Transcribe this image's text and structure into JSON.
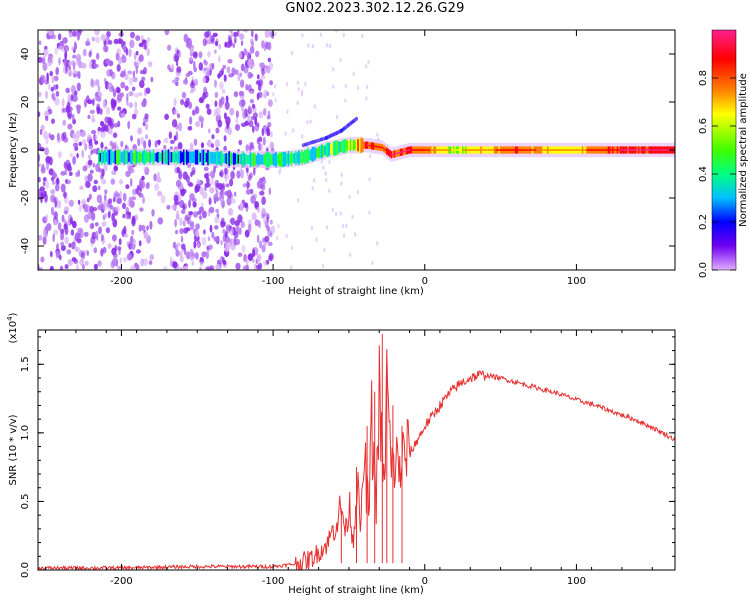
{
  "figure": {
    "title": "GN02.2023.302.12.26.G29"
  },
  "chart_data": [
    {
      "type": "heatmap",
      "xlabel": "Height of straight line (km)",
      "ylabel": "Frequency (Hz)",
      "xlim": [
        -255,
        165
      ],
      "ylim": [
        -50,
        50
      ],
      "xticks": [
        -200,
        -100,
        0,
        100
      ],
      "yticks": [
        -40,
        -20,
        0,
        20,
        40
      ],
      "colorbar": {
        "label": "Normalized spectral amplitude",
        "range": [
          0,
          1
        ],
        "ticks": [
          "0.0",
          "0.2",
          "0.4",
          "0.6",
          "0.8"
        ],
        "colormap": [
          "#e0b0ff",
          "#6000f0",
          "#0000ff",
          "#00c0ff",
          "#00ff80",
          "#40ff00",
          "#ffff00",
          "#ff8000",
          "#ff0000",
          "#ff2090"
        ]
      },
      "ridge": {
        "description_points": [
          {
            "x": -215,
            "y": -3,
            "amp": 0.35
          },
          {
            "x": -180,
            "y": -3,
            "amp": 0.4
          },
          {
            "x": -150,
            "y": -3,
            "amp": 0.3
          },
          {
            "x": -115,
            "y": -4,
            "amp": 0.4
          },
          {
            "x": -95,
            "y": -4,
            "amp": 0.5
          },
          {
            "x": -80,
            "y": -3,
            "amp": 0.45
          },
          {
            "x": -65,
            "y": 0,
            "amp": 0.5
          },
          {
            "x": -50,
            "y": 2,
            "amp": 0.55
          },
          {
            "x": -38,
            "y": 2,
            "amp": 0.85
          },
          {
            "x": -28,
            "y": 1,
            "amp": 0.8
          },
          {
            "x": -22,
            "y": -2,
            "amp": 0.85
          },
          {
            "x": -10,
            "y": 0,
            "amp": 0.85
          },
          {
            "x": 20,
            "y": 0,
            "amp": 0.6
          },
          {
            "x": 60,
            "y": 0,
            "amp": 0.8
          },
          {
            "x": 90,
            "y": 0,
            "amp": 0.65
          },
          {
            "x": 130,
            "y": 0,
            "amp": 0.85
          },
          {
            "x": 165,
            "y": 0,
            "amp": 0.9
          }
        ]
      },
      "upper_branch": [
        {
          "x": -80,
          "y": 2
        },
        {
          "x": -65,
          "y": 5
        },
        {
          "x": -55,
          "y": 8
        },
        {
          "x": -45,
          "y": 13
        }
      ],
      "noise_region_x": [
        -255,
        -100
      ]
    },
    {
      "type": "line",
      "xlabel": "Height of straight line (km)",
      "ylabel": "SNR (10 * v/v)",
      "y_multiplier": "(x10^4)",
      "xlim": [
        -255,
        165
      ],
      "ylim": [
        0,
        1.75
      ],
      "xticks": [
        -200,
        -100,
        0,
        100
      ],
      "yticks": [
        "0.0",
        "0.5",
        "1.0",
        "1.5"
      ],
      "series": [
        {
          "color": "#e83030",
          "x": [
            -255,
            -200,
            -150,
            -100,
            -85,
            -75,
            -65,
            -60,
            -55,
            -52,
            -50,
            -47,
            -45,
            -42,
            -40,
            -37,
            -35,
            -32,
            -30,
            -27,
            -25,
            -22,
            -20,
            -17,
            -15,
            -12,
            -10,
            -7,
            -5,
            -2,
            0,
            5,
            10,
            15,
            20,
            25,
            30,
            35,
            40,
            50,
            60,
            70,
            80,
            90,
            100,
            110,
            120,
            130,
            140,
            150,
            160,
            165
          ],
          "y": [
            0.01,
            0.01,
            0.02,
            0.02,
            0.04,
            0.08,
            0.18,
            0.3,
            0.45,
            0.28,
            0.5,
            0.2,
            0.65,
            0.3,
            0.85,
            0.4,
            1.05,
            0.5,
            1.25,
            0.6,
            1.35,
            0.7,
            0.8,
            0.75,
            0.8,
            0.85,
            0.85,
            0.9,
            0.95,
            1.0,
            1.05,
            1.12,
            1.2,
            1.27,
            1.33,
            1.37,
            1.4,
            1.42,
            1.42,
            1.4,
            1.37,
            1.34,
            1.31,
            1.28,
            1.24,
            1.21,
            1.17,
            1.13,
            1.09,
            1.04,
            0.98,
            0.95
          ]
        }
      ],
      "spikes": [
        {
          "x": -55,
          "y": 0.45
        },
        {
          "x": -45,
          "y": 0.75
        },
        {
          "x": -38,
          "y": 1.05
        },
        {
          "x": -33,
          "y": 1.3
        },
        {
          "x": -28,
          "y": 1.72
        },
        {
          "x": -25,
          "y": 1.45
        },
        {
          "x": -21,
          "y": 1.2
        },
        {
          "x": -15,
          "y": 1.05
        }
      ]
    }
  ]
}
